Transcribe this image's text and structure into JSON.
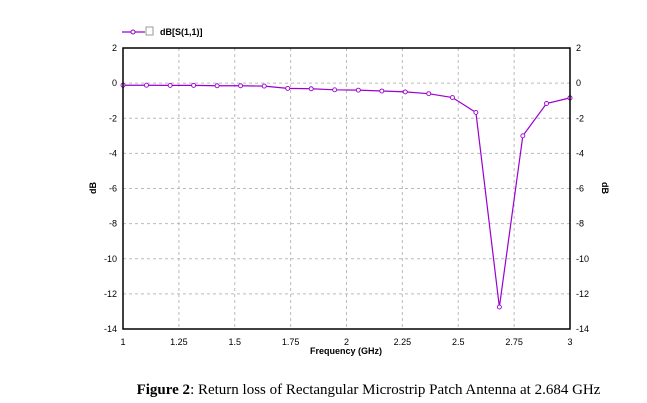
{
  "chart_data": {
    "type": "line",
    "title": "",
    "xlabel": "Frequency (GHz)",
    "ylabel": "dB",
    "ylabel_right": "dB",
    "xlim": [
      1,
      3
    ],
    "ylim": [
      -14,
      2
    ],
    "xticks": [
      "1",
      "1.25",
      "1.5",
      "1.75",
      "2",
      "2.25",
      "2.5",
      "2.75",
      "3"
    ],
    "yticks": [
      "2",
      "0",
      "-2",
      "-4",
      "-6",
      "-8",
      "-10",
      "-12",
      "-14"
    ],
    "grid": true,
    "legend": {
      "placement": "top-left",
      "entries": [
        "dB[S(1,1)]"
      ]
    },
    "series": [
      {
        "name": "dB[S(1,1)]",
        "color": "#9a00d0",
        "x": [
          1.0,
          1.105,
          1.211,
          1.316,
          1.421,
          1.526,
          1.632,
          1.737,
          1.842,
          1.947,
          2.053,
          2.158,
          2.263,
          2.368,
          2.474,
          2.579,
          2.684,
          2.789,
          2.895,
          3.0
        ],
        "y": [
          -0.12,
          -0.12,
          -0.13,
          -0.13,
          -0.15,
          -0.15,
          -0.17,
          -0.3,
          -0.32,
          -0.38,
          -0.4,
          -0.45,
          -0.5,
          -0.6,
          -0.82,
          -1.67,
          -12.75,
          -3.0,
          -1.16,
          -0.84
        ]
      }
    ]
  },
  "caption": {
    "label": "Figure 2",
    "text": ":  Return loss of Rectangular Microstrip Patch Antenna at 2.684 GHz"
  }
}
